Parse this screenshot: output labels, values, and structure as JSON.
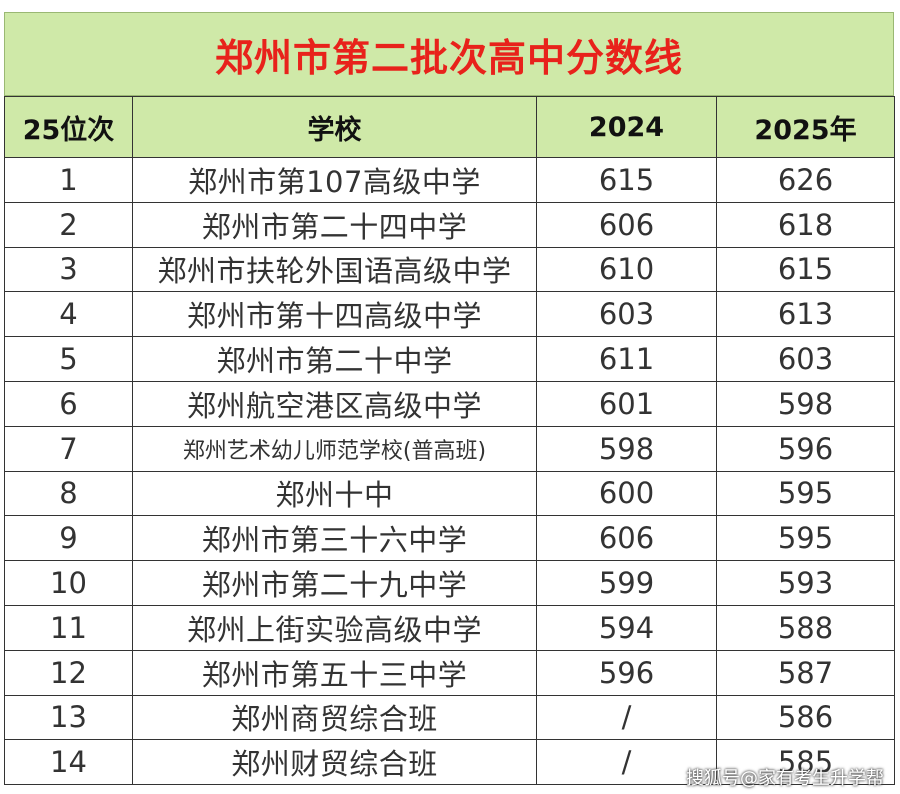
{
  "title": "郑州市第二批次高中分数线",
  "headers": {
    "rank": "25位次",
    "school": "学校",
    "y2024": "2024",
    "y2025": "2025年"
  },
  "rows": [
    {
      "rank": "1",
      "school": "郑州市第107高级中学",
      "y2024": "615",
      "y2025": "626"
    },
    {
      "rank": "2",
      "school": "郑州市第二十四中学",
      "y2024": "606",
      "y2025": "618"
    },
    {
      "rank": "3",
      "school": "郑州市扶轮外国语高级中学",
      "y2024": "610",
      "y2025": "615"
    },
    {
      "rank": "4",
      "school": "郑州市第十四高级中学",
      "y2024": "603",
      "y2025": "613"
    },
    {
      "rank": "5",
      "school": "郑州市第二十中学",
      "y2024": "611",
      "y2025": "603"
    },
    {
      "rank": "6",
      "school": "郑州航空港区高级中学",
      "y2024": "601",
      "y2025": "598"
    },
    {
      "rank": "7",
      "school": "郑州艺术幼儿师范学校(普高班)",
      "y2024": "598",
      "y2025": "596"
    },
    {
      "rank": "8",
      "school": "郑州十中",
      "y2024": "600",
      "y2025": "595"
    },
    {
      "rank": "9",
      "school": "郑州市第三十六中学",
      "y2024": "606",
      "y2025": "595"
    },
    {
      "rank": "10",
      "school": "郑州市第二十九中学",
      "y2024": "599",
      "y2025": "593"
    },
    {
      "rank": "11",
      "school": "郑州上街实验高级中学",
      "y2024": "594",
      "y2025": "588"
    },
    {
      "rank": "12",
      "school": "郑州市第五十三中学",
      "y2024": "596",
      "y2025": "587"
    },
    {
      "rank": "13",
      "school": "郑州商贸综合班",
      "y2024": "/",
      "y2025": "586"
    },
    {
      "rank": "14",
      "school": "郑州财贸综合班",
      "y2024": "/",
      "y2025": "585"
    }
  ],
  "watermark": "搜狐号@家有考生升学帮",
  "colors": {
    "header_bg": "#cfe9a8",
    "title_text": "#e8221b"
  }
}
